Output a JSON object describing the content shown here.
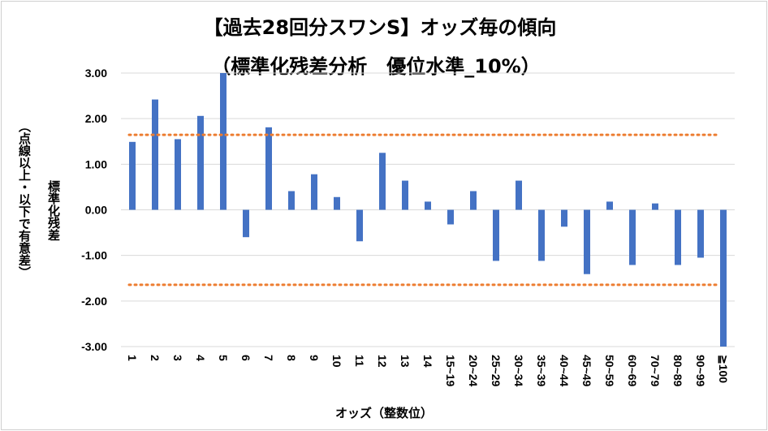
{
  "chart_data": {
    "type": "bar",
    "title": "【過去28回分スワンS】オッズ毎の傾向",
    "subtitle": "（標準化残差分析　優位水準_10%）",
    "xlabel": "オッズ（整数位）",
    "ylabel": "標準化残差",
    "ylabel_note": "（点線以上・以下で有意差）",
    "ylim": [
      -3,
      3
    ],
    "yticks": [
      "3.00",
      "2.00",
      "1.00",
      "0.00",
      "-1.00",
      "-2.00",
      "-3.00"
    ],
    "ytick_values": [
      3,
      2,
      1,
      0,
      -1,
      -2,
      -3
    ],
    "categories": [
      "1",
      "2",
      "3",
      "4",
      "5",
      "6",
      "7",
      "8",
      "9",
      "10",
      "11",
      "12",
      "13",
      "14",
      "15~19",
      "20~24",
      "25~29",
      "30~34",
      "35~39",
      "40~44",
      "45~49",
      "50~59",
      "60~69",
      "70~79",
      "80~89",
      "90~99",
      "≧100"
    ],
    "values": [
      1.49,
      2.42,
      1.55,
      2.06,
      3.0,
      -0.6,
      1.81,
      0.41,
      0.78,
      0.28,
      -0.69,
      1.25,
      0.64,
      0.18,
      -0.32,
      0.41,
      -1.12,
      0.64,
      -1.12,
      -0.37,
      -1.41,
      0.18,
      -1.21,
      0.14,
      -1.21,
      -1.05,
      -3.0
    ],
    "threshold_lines": [
      1.645,
      -1.645
    ],
    "grid": true,
    "bar_color": "#4472C4",
    "threshold_color": "#ED7D31"
  }
}
